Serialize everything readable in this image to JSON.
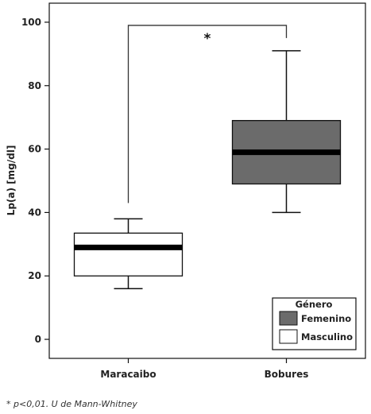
{
  "chart_data": {
    "type": "box",
    "ylabel": "Lp(a) [mg/dl]",
    "ylim": [
      -6,
      106
    ],
    "yticks": [
      0,
      20,
      40,
      60,
      80,
      100
    ],
    "categories": [
      "Maracaibo",
      "Bobures"
    ],
    "boxes": [
      {
        "category": "Maracaibo",
        "whisker_low": 16,
        "q1": 20,
        "median": 29,
        "q3": 33.5,
        "whisker_high": 38,
        "fill": "#ffffff"
      },
      {
        "category": "Bobures",
        "whisker_low": 40,
        "q1": 49,
        "median": 59,
        "q3": 69,
        "whisker_high": 91,
        "fill": "#6b6b6b"
      }
    ],
    "significance": {
      "label": "*",
      "y": 99
    },
    "legend": {
      "title": "Género",
      "placement": "bottom-right",
      "entries": [
        {
          "label": "Femenino",
          "color": "#6b6b6b"
        },
        {
          "label": "Masculino",
          "color": "#ffffff"
        }
      ]
    },
    "grid": false
  },
  "footnote": "* p<0,01. U de Mann-Whitney"
}
